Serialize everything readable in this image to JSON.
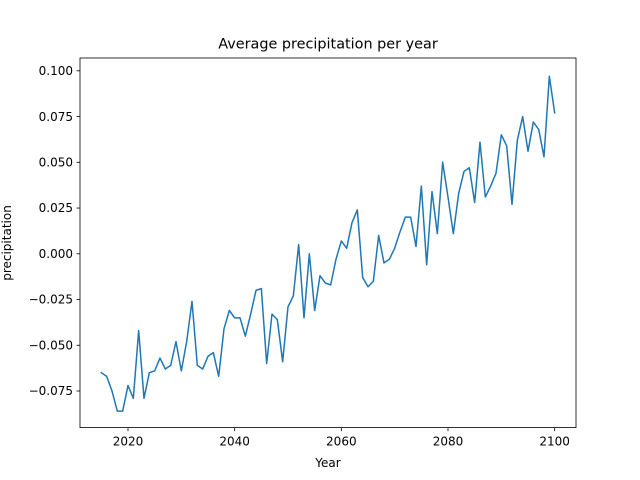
{
  "chart_data": {
    "type": "line",
    "title": "Average precipitation per year",
    "xlabel": "Year",
    "ylabel": "precipitation",
    "xlim": [
      2011,
      2104
    ],
    "ylim": [
      -0.095,
      0.107
    ],
    "x_ticks": [
      2020,
      2040,
      2060,
      2080,
      2100
    ],
    "y_ticks": [
      -0.075,
      -0.05,
      -0.025,
      0.0,
      0.025,
      0.05,
      0.075,
      0.1
    ],
    "x_tick_labels": [
      "2020",
      "2040",
      "2060",
      "2080",
      "2100"
    ],
    "y_tick_labels": [
      "−0.075",
      "−0.050",
      "−0.025",
      "0.000",
      "0.025",
      "0.050",
      "0.075",
      "0.100"
    ],
    "grid": false,
    "color": "#1f77b4",
    "series": [
      {
        "x": [
          2015,
          2016,
          2017,
          2018,
          2019,
          2020,
          2021,
          2022,
          2023,
          2024,
          2025,
          2026,
          2027,
          2028,
          2029,
          2030,
          2031,
          2032,
          2033,
          2034,
          2035,
          2036,
          2037,
          2038,
          2039,
          2040,
          2041,
          2042,
          2043,
          2044,
          2045,
          2046,
          2047,
          2048,
          2049,
          2050,
          2051,
          2052,
          2053,
          2054,
          2055,
          2056,
          2057,
          2058,
          2059,
          2060,
          2061,
          2062,
          2063,
          2064,
          2065,
          2066,
          2067,
          2068,
          2069,
          2070,
          2071,
          2072,
          2073,
          2074,
          2075,
          2076,
          2077,
          2078,
          2079,
          2080,
          2081,
          2082,
          2083,
          2084,
          2085,
          2086,
          2087,
          2088,
          2089,
          2090,
          2091,
          2092,
          2093,
          2094,
          2095,
          2096,
          2097,
          2098,
          2099,
          2100
        ],
        "y": [
          -0.065,
          -0.067,
          -0.075,
          -0.086,
          -0.086,
          -0.072,
          -0.079,
          -0.042,
          -0.079,
          -0.065,
          -0.064,
          -0.057,
          -0.063,
          -0.061,
          -0.048,
          -0.064,
          -0.048,
          -0.026,
          -0.061,
          -0.063,
          -0.056,
          -0.054,
          -0.067,
          -0.041,
          -0.031,
          -0.035,
          -0.035,
          -0.045,
          -0.033,
          -0.02,
          -0.019,
          -0.06,
          -0.033,
          -0.036,
          -0.059,
          -0.029,
          -0.023,
          0.005,
          -0.035,
          0.0,
          -0.031,
          -0.012,
          -0.016,
          -0.017,
          -0.003,
          0.007,
          0.003,
          0.017,
          0.024,
          -0.013,
          -0.018,
          -0.015,
          0.01,
          -0.005,
          -0.003,
          0.003,
          0.012,
          0.02,
          0.02,
          0.004,
          0.037,
          -0.006,
          0.034,
          0.011,
          0.05,
          0.031,
          0.011,
          0.033,
          0.045,
          0.047,
          0.028,
          0.061,
          0.031,
          0.037,
          0.044,
          0.065,
          0.059,
          0.027,
          0.062,
          0.075,
          0.056,
          0.072,
          0.068,
          0.053,
          0.097,
          0.077
        ]
      }
    ]
  }
}
